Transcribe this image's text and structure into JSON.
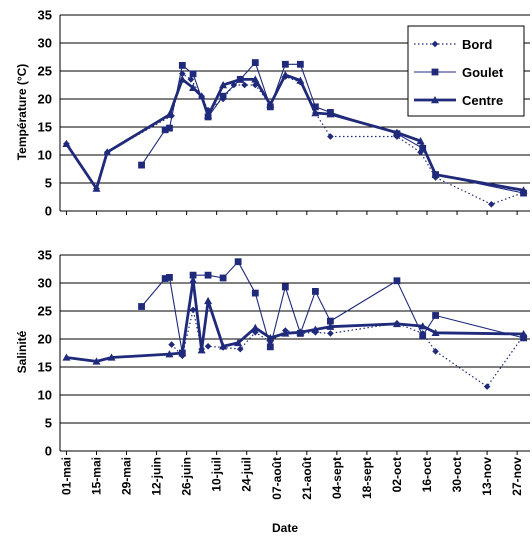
{
  "chart_data": [
    {
      "type": "line",
      "ylabel": "Température (°C)",
      "ylim": [
        0,
        35
      ],
      "yticks": [
        0,
        5,
        10,
        15,
        20,
        25,
        30,
        35
      ],
      "grid": true,
      "legend": "top-right",
      "series": [
        {
          "name": "Bord",
          "style": "dotted-diamond",
          "points": [
            [
              "2001-05-01",
              12.0
            ],
            [
              "2001-05-15",
              4.0
            ],
            [
              "2001-05-20",
              10.5
            ],
            [
              "2001-06-19",
              17.0
            ],
            [
              "2001-06-24",
              24.5
            ],
            [
              "2001-06-28",
              23.5
            ],
            [
              "2001-07-03",
              20.5
            ],
            [
              "2001-07-06",
              18.0
            ],
            [
              "2001-07-13",
              20.0
            ],
            [
              "2001-07-18",
              22.5
            ],
            [
              "2001-07-23",
              22.5
            ],
            [
              "2001-07-28",
              22.5
            ],
            [
              "2001-08-04",
              19.0
            ],
            [
              "2001-08-11",
              24.0
            ],
            [
              "2001-08-18",
              23.0
            ],
            [
              "2001-08-25",
              17.5
            ],
            [
              "2001-09-01",
              13.3
            ],
            [
              "2001-10-02",
              13.3
            ],
            [
              "2001-10-13",
              10.5
            ],
            [
              "2001-10-20",
              6.0
            ],
            [
              "2001-11-15",
              1.2
            ],
            [
              "2001-11-30",
              3.3
            ]
          ]
        },
        {
          "name": "Goulet",
          "style": "square",
          "points": [
            [
              "2001-06-05",
              8.2
            ],
            [
              "2001-06-16",
              14.5
            ],
            [
              "2001-06-18",
              14.8
            ],
            [
              "2001-06-24",
              26.0
            ],
            [
              "2001-06-29",
              24.5
            ],
            [
              "2001-07-06",
              16.8
            ],
            [
              "2001-07-13",
              20.5
            ],
            [
              "2001-07-21",
              23.5
            ],
            [
              "2001-07-28",
              26.5
            ],
            [
              "2001-08-04",
              18.6
            ],
            [
              "2001-08-11",
              26.2
            ],
            [
              "2001-08-18",
              26.2
            ],
            [
              "2001-08-25",
              18.6
            ],
            [
              "2001-09-01",
              17.6
            ],
            [
              "2001-10-02",
              13.8
            ],
            [
              "2001-10-14",
              11.2
            ],
            [
              "2001-10-20",
              6.5
            ],
            [
              "2001-11-30",
              3.2
            ]
          ]
        },
        {
          "name": "Centre",
          "style": "thick-triangle",
          "points": [
            [
              "2001-05-01",
              12.0
            ],
            [
              "2001-05-15",
              4.0
            ],
            [
              "2001-05-20",
              10.5
            ],
            [
              "2001-06-18",
              17.2
            ],
            [
              "2001-06-24",
              23.5
            ],
            [
              "2001-06-29",
              22.0
            ],
            [
              "2001-07-03",
              20.5
            ],
            [
              "2001-07-06",
              17.0
            ],
            [
              "2001-07-13",
              22.5
            ],
            [
              "2001-07-21",
              23.5
            ],
            [
              "2001-07-28",
              23.5
            ],
            [
              "2001-08-04",
              19.0
            ],
            [
              "2001-08-11",
              24.3
            ],
            [
              "2001-08-18",
              23.3
            ],
            [
              "2001-08-25",
              17.5
            ],
            [
              "2001-09-01",
              17.3
            ],
            [
              "2001-10-02",
              14.0
            ],
            [
              "2001-10-13",
              12.5
            ],
            [
              "2001-10-20",
              6.5
            ],
            [
              "2001-11-30",
              3.7
            ]
          ]
        }
      ]
    },
    {
      "type": "line",
      "ylabel": "Salinité",
      "ylim": [
        0,
        35
      ],
      "yticks": [
        0,
        5,
        10,
        15,
        20,
        25,
        30,
        35
      ],
      "grid": true,
      "series": [
        {
          "name": "Bord",
          "style": "dotted-diamond",
          "points": [
            [
              "2001-06-19",
              19.0
            ],
            [
              "2001-06-24",
              17.0
            ],
            [
              "2001-06-29",
              25.2
            ],
            [
              "2001-07-03",
              18.2
            ],
            [
              "2001-07-06",
              18.7
            ],
            [
              "2001-07-13",
              18.5
            ],
            [
              "2001-07-21",
              18.2
            ],
            [
              "2001-07-28",
              21.2
            ],
            [
              "2001-08-04",
              19.5
            ],
            [
              "2001-08-11",
              21.5
            ],
            [
              "2001-08-18",
              21.0
            ],
            [
              "2001-08-25",
              21.2
            ],
            [
              "2001-09-01",
              21.0
            ],
            [
              "2001-10-02",
              22.8
            ],
            [
              "2001-10-14",
              21.0
            ],
            [
              "2001-10-20",
              17.8
            ],
            [
              "2001-11-13",
              11.5
            ],
            [
              "2001-11-30",
              20.6
            ]
          ]
        },
        {
          "name": "Goulet",
          "style": "square",
          "points": [
            [
              "2001-06-05",
              25.8
            ],
            [
              "2001-06-16",
              30.8
            ],
            [
              "2001-06-18",
              31.0
            ],
            [
              "2001-06-24",
              17.5
            ],
            [
              "2001-06-29",
              31.4
            ],
            [
              "2001-07-06",
              31.4
            ],
            [
              "2001-07-13",
              30.9
            ],
            [
              "2001-07-20",
              33.8
            ],
            [
              "2001-07-28",
              28.2
            ],
            [
              "2001-08-04",
              18.6
            ],
            [
              "2001-08-11",
              29.3
            ],
            [
              "2001-08-18",
              21.0
            ],
            [
              "2001-08-25",
              28.5
            ],
            [
              "2001-09-01",
              23.2
            ],
            [
              "2001-10-02",
              30.4
            ],
            [
              "2001-10-14",
              20.6
            ],
            [
              "2001-10-20",
              24.2
            ],
            [
              "2001-11-30",
              20.2
            ]
          ]
        },
        {
          "name": "Centre",
          "style": "thick-triangle",
          "points": [
            [
              "2001-05-01",
              16.7
            ],
            [
              "2001-05-15",
              16.0
            ],
            [
              "2001-05-22",
              16.7
            ],
            [
              "2001-06-18",
              17.3
            ],
            [
              "2001-06-24",
              17.5
            ],
            [
              "2001-06-29",
              30.5
            ],
            [
              "2001-07-03",
              18.0
            ],
            [
              "2001-07-06",
              26.8
            ],
            [
              "2001-07-13",
              18.7
            ],
            [
              "2001-07-20",
              19.3
            ],
            [
              "2001-07-28",
              22.0
            ],
            [
              "2001-08-04",
              20.2
            ],
            [
              "2001-08-11",
              21.0
            ],
            [
              "2001-08-18",
              21.2
            ],
            [
              "2001-08-25",
              21.7
            ],
            [
              "2001-09-01",
              22.2
            ],
            [
              "2001-10-02",
              22.7
            ],
            [
              "2001-10-14",
              22.3
            ],
            [
              "2001-10-20",
              21.1
            ],
            [
              "2001-11-30",
              20.9
            ]
          ]
        }
      ]
    }
  ],
  "x_axis": {
    "title": "Date",
    "tick_dates": [
      "2001-05-01",
      "2001-05-15",
      "2001-05-29",
      "2001-06-12",
      "2001-06-26",
      "2001-07-10",
      "2001-07-24",
      "2001-08-07",
      "2001-08-21",
      "2001-09-04",
      "2001-09-18",
      "2001-10-02",
      "2001-10-16",
      "2001-10-30",
      "2001-11-13",
      "2001-11-27"
    ],
    "tick_labels": [
      "01-mai",
      "15-mai",
      "29-mai",
      "12-juin",
      "26-juin",
      "10-juil",
      "24-juil",
      "07-août",
      "21-août",
      "04-sept",
      "18-sept",
      "02-oct",
      "16-oct",
      "30-oct",
      "13-nov",
      "27-nov"
    ],
    "range": [
      "2001-04-28",
      "2001-12-03"
    ]
  },
  "legend": {
    "items": [
      {
        "label": "Bord",
        "style": "dotted-diamond"
      },
      {
        "label": "Goulet",
        "style": "square"
      },
      {
        "label": "Centre",
        "style": "thick-triangle"
      }
    ]
  },
  "colors": {
    "series": "#1f2a7a",
    "grid": "#000000",
    "text": "#000000"
  }
}
